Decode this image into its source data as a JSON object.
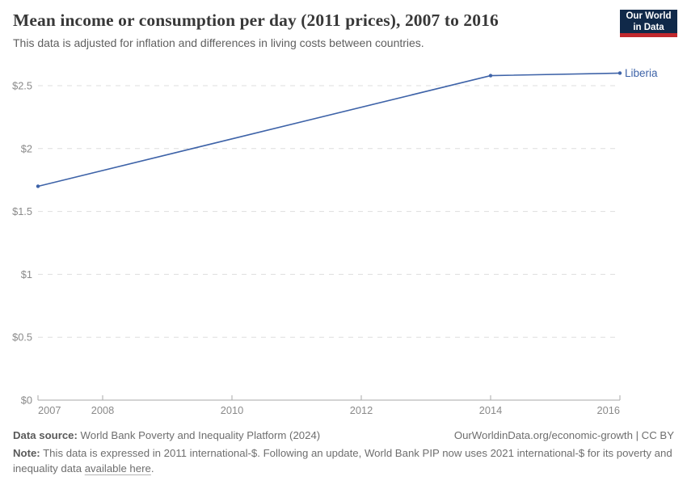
{
  "header": {
    "title": "Mean income or consumption per day (2011 prices), 2007 to 2016",
    "subtitle": "This data is adjusted for inflation and differences in living costs between countries.",
    "logo_line1": "Our World",
    "logo_line2": "in Data",
    "logo_bg_color": "#102949",
    "logo_bar_color": "#c0282d"
  },
  "chart_data": {
    "type": "line",
    "title": "Mean income or consumption per day (2011 prices), 2007 to 2016",
    "x": [
      2007,
      2014,
      2016
    ],
    "series": [
      {
        "name": "Liberia",
        "values": [
          1.7,
          2.58,
          2.6
        ],
        "color": "#3e63a8"
      }
    ],
    "xlim": [
      2007,
      2016
    ],
    "ylim": [
      0,
      2.5
    ],
    "x_ticks": [
      2007,
      2008,
      2010,
      2012,
      2014,
      2016
    ],
    "y_ticks": [
      0,
      0.5,
      1,
      1.5,
      2,
      2.5
    ],
    "y_tick_labels": [
      "$0",
      "$0.5",
      "$1",
      "$1.5",
      "$2",
      "$2.5"
    ],
    "xlabel": "",
    "ylabel": "",
    "grid": "horizontal-dashed",
    "legend_position": "line-end",
    "axis_text_color": "#8a8a8a",
    "gridline_color": "#dedede",
    "axis_line_color": "#a9a9a9"
  },
  "footer": {
    "source_label": "Data source:",
    "source_text": " World Bank Poverty and Inequality Platform (2024)",
    "rights_text": "OurWorldinData.org/economic-growth | CC BY",
    "note_label": "Note:",
    "note_before_link": " This data is expressed in 2011 international-$. Following an update, World Bank PIP now uses 2021 international-$ for its poverty and inequality data ",
    "note_link": "available here",
    "note_after_link": "."
  }
}
